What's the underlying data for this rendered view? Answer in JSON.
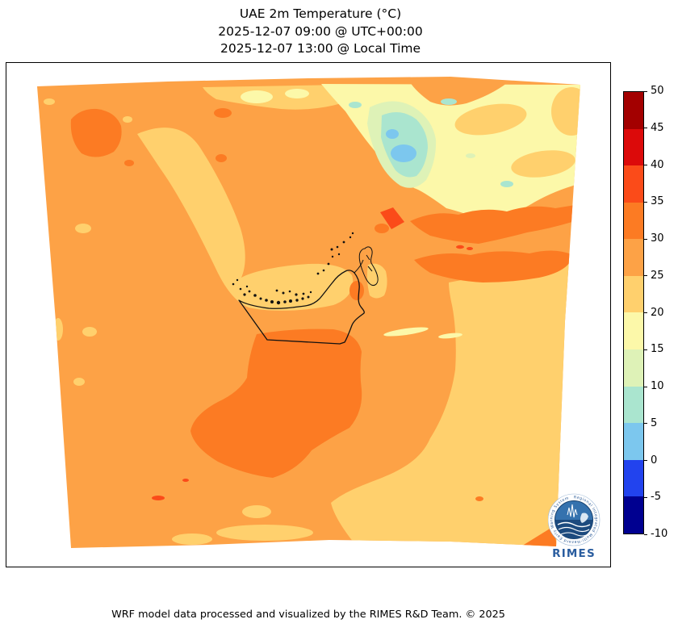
{
  "title": {
    "line1": "UAE 2m Temperature (°C)",
    "line2": "2025-12-07 09:00 @ UTC+00:00",
    "line3": "2025-12-07 13:00 @ Local Time"
  },
  "footer": {
    "credit": "WRF model data processed and visualized by the RIMES R&D Team. © 2025"
  },
  "logo": {
    "wordmark": "RIMES",
    "ring_text": "Regional Integrated Multi-Hazard Early Warning System"
  },
  "palette": {
    "t45_50": "#a30000",
    "t40_45": "#dc0a0a",
    "t35_40": "#fb4b19",
    "t30_35": "#fc7b23",
    "t25_30": "#fda246",
    "t20_25": "#ffd06d",
    "t15_20": "#fcf8a9",
    "t10_15": "#def2b7",
    "t5_10": "#aae5cf",
    "t0_5": "#7cc7ee",
    "tm5_0": "#2243ee",
    "tm10_m5": "#000090"
  },
  "chart_data": {
    "type": "heatmap",
    "title": "UAE 2m Temperature (°C)",
    "valid_time_utc": "2025-12-07 09:00 @ UTC+00:00",
    "valid_time_local": "2025-12-07 13:00 @ Local Time",
    "variable": "2 m air temperature",
    "units": "°C",
    "projection": "Lambert conformal (trapezoidal WRF domain) over UAE / Persian Gulf",
    "colorbar": {
      "orientation": "vertical",
      "position": "right",
      "range": [
        -10,
        50
      ],
      "bin_size": 5,
      "ticks": [
        50,
        45,
        40,
        35,
        30,
        25,
        20,
        15,
        10,
        5,
        0,
        -5,
        -10
      ],
      "segment_colors_top_to_bottom": [
        "#a30000",
        "#dc0a0a",
        "#fb4b19",
        "#fc7b23",
        "#fda246",
        "#ffd06d",
        "#fcf8a9",
        "#def2b7",
        "#aae5cf",
        "#7cc7ee",
        "#2243ee",
        "#000090"
      ]
    },
    "map_regions": [
      {
        "area": "Most land (Arabian Peninsula, UAE interior)",
        "temperature_c": "25-30"
      },
      {
        "area": "Persian Gulf water and UAE coastal strip",
        "temperature_c": "20-25"
      },
      {
        "area": "Gulf of Oman / sea in south-east corner",
        "temperature_c": "20-25"
      },
      {
        "area": "Desert south of UAE border and east-central band",
        "temperature_c": "30-35"
      },
      {
        "area": "North-west inland spot and scattered patches",
        "temperature_c": "30-35"
      },
      {
        "area": "Iran highlands, north-east corner",
        "temperature_c": "10-20"
      },
      {
        "area": "Zagros mountain cores (small patches)",
        "temperature_c": "0-10"
      },
      {
        "area": "Hottest tiny spots (south desert, east band)",
        "temperature_c": "35-40"
      }
    ],
    "overlays": [
      "UAE national border outline in black",
      "coastal island dots",
      "Musandam peninsula outline"
    ],
    "legend_position": "right colorbar",
    "grid": false
  }
}
